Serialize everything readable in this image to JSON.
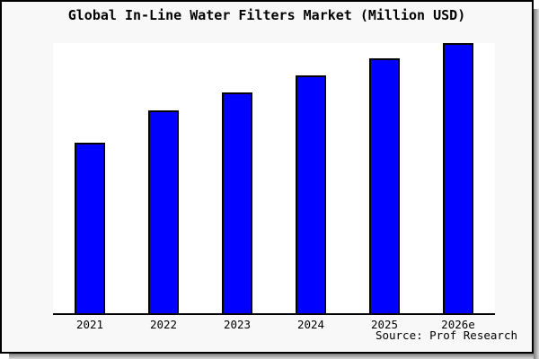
{
  "window": {
    "card_background": "#f8f8f8",
    "frame_border_color": "#000000",
    "shadow_color": "#7d7d7d"
  },
  "header": {
    "title": "Global In-Line Water Filters Market (Million USD)"
  },
  "footer": {
    "source_note": "Source: Prof Research"
  },
  "chart_data": {
    "type": "bar",
    "title": "Global In-Line Water Filters Market (Million USD)",
    "categories": [
      "2021",
      "2022",
      "2023",
      "2024",
      "2025",
      "2026e"
    ],
    "values": [
      63.1,
      75.1,
      81.7,
      88.0,
      94.4,
      100
    ],
    "units": "relative bar height, % of 2026e bar (no numeric y-axis shown in image)",
    "xlabel": "",
    "ylabel": "",
    "ylim": [
      0,
      100.7
    ],
    "grid": false,
    "legend": false,
    "y_axis_shown": false,
    "bar_color": "#0000ff",
    "bar_border_color": "#000000",
    "plot_background": "#ffffff",
    "source_note": "Source: Prof Research"
  }
}
